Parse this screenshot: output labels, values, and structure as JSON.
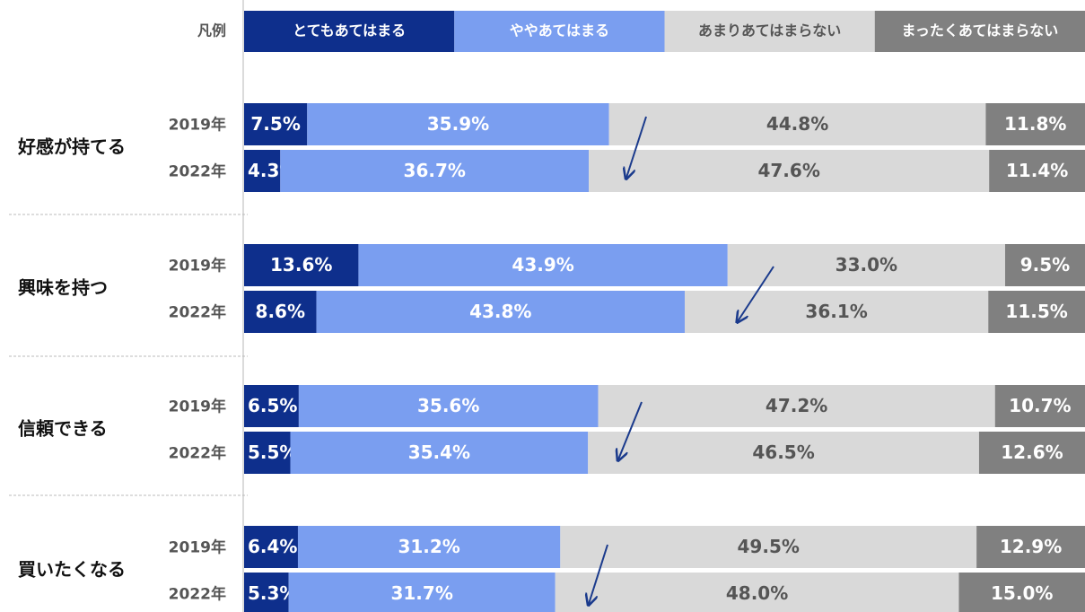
{
  "chart_data": {
    "type": "stacked-bar",
    "legend_title": "凡例",
    "groups": [
      "好感が持てる",
      "興味を持つ",
      "信頼できる",
      "買いたくなる"
    ],
    "categories": [
      "2019年",
      "2022年",
      "2019年",
      "2022年",
      "2019年",
      "2022年",
      "2019年",
      "2022年"
    ],
    "xlim": [
      0,
      100
    ],
    "series": [
      {
        "name": "とてもあてはまる",
        "color": "#0e2f8c",
        "values": [
          7.5,
          4.3,
          13.6,
          8.6,
          6.5,
          5.5,
          6.4,
          5.3
        ],
        "value_labels": [
          "7.5%",
          "4.3%",
          "13.6%",
          "8.6%",
          "6.5%",
          "5.5%",
          "6.4%",
          "5.3%"
        ]
      },
      {
        "name": "ややあてはまる",
        "color": "#7a9ef0",
        "values": [
          35.9,
          36.7,
          43.9,
          43.8,
          35.6,
          35.4,
          31.2,
          31.7
        ],
        "value_labels": [
          "35.9%",
          "36.7%",
          "43.9%",
          "43.8%",
          "35.6%",
          "35.4%",
          "31.2%",
          "31.7%"
        ]
      },
      {
        "name": "あまりあてはまらない",
        "color": "#d9d9d9",
        "values": [
          44.8,
          47.6,
          33.0,
          36.1,
          47.2,
          46.5,
          49.5,
          48.0
        ],
        "value_labels": [
          "44.8%",
          "47.6%",
          "33.0%",
          "36.1%",
          "47.2%",
          "46.5%",
          "49.5%",
          "48.0%"
        ]
      },
      {
        "name": "まったくあてはまらない",
        "color": "#808080",
        "values": [
          11.8,
          11.4,
          9.5,
          11.5,
          10.7,
          12.6,
          12.9,
          15.0
        ],
        "value_labels": [
          "11.8%",
          "11.4%",
          "9.5%",
          "11.5%",
          "10.7%",
          "12.6%",
          "12.9%",
          "15.0%"
        ]
      }
    ]
  }
}
